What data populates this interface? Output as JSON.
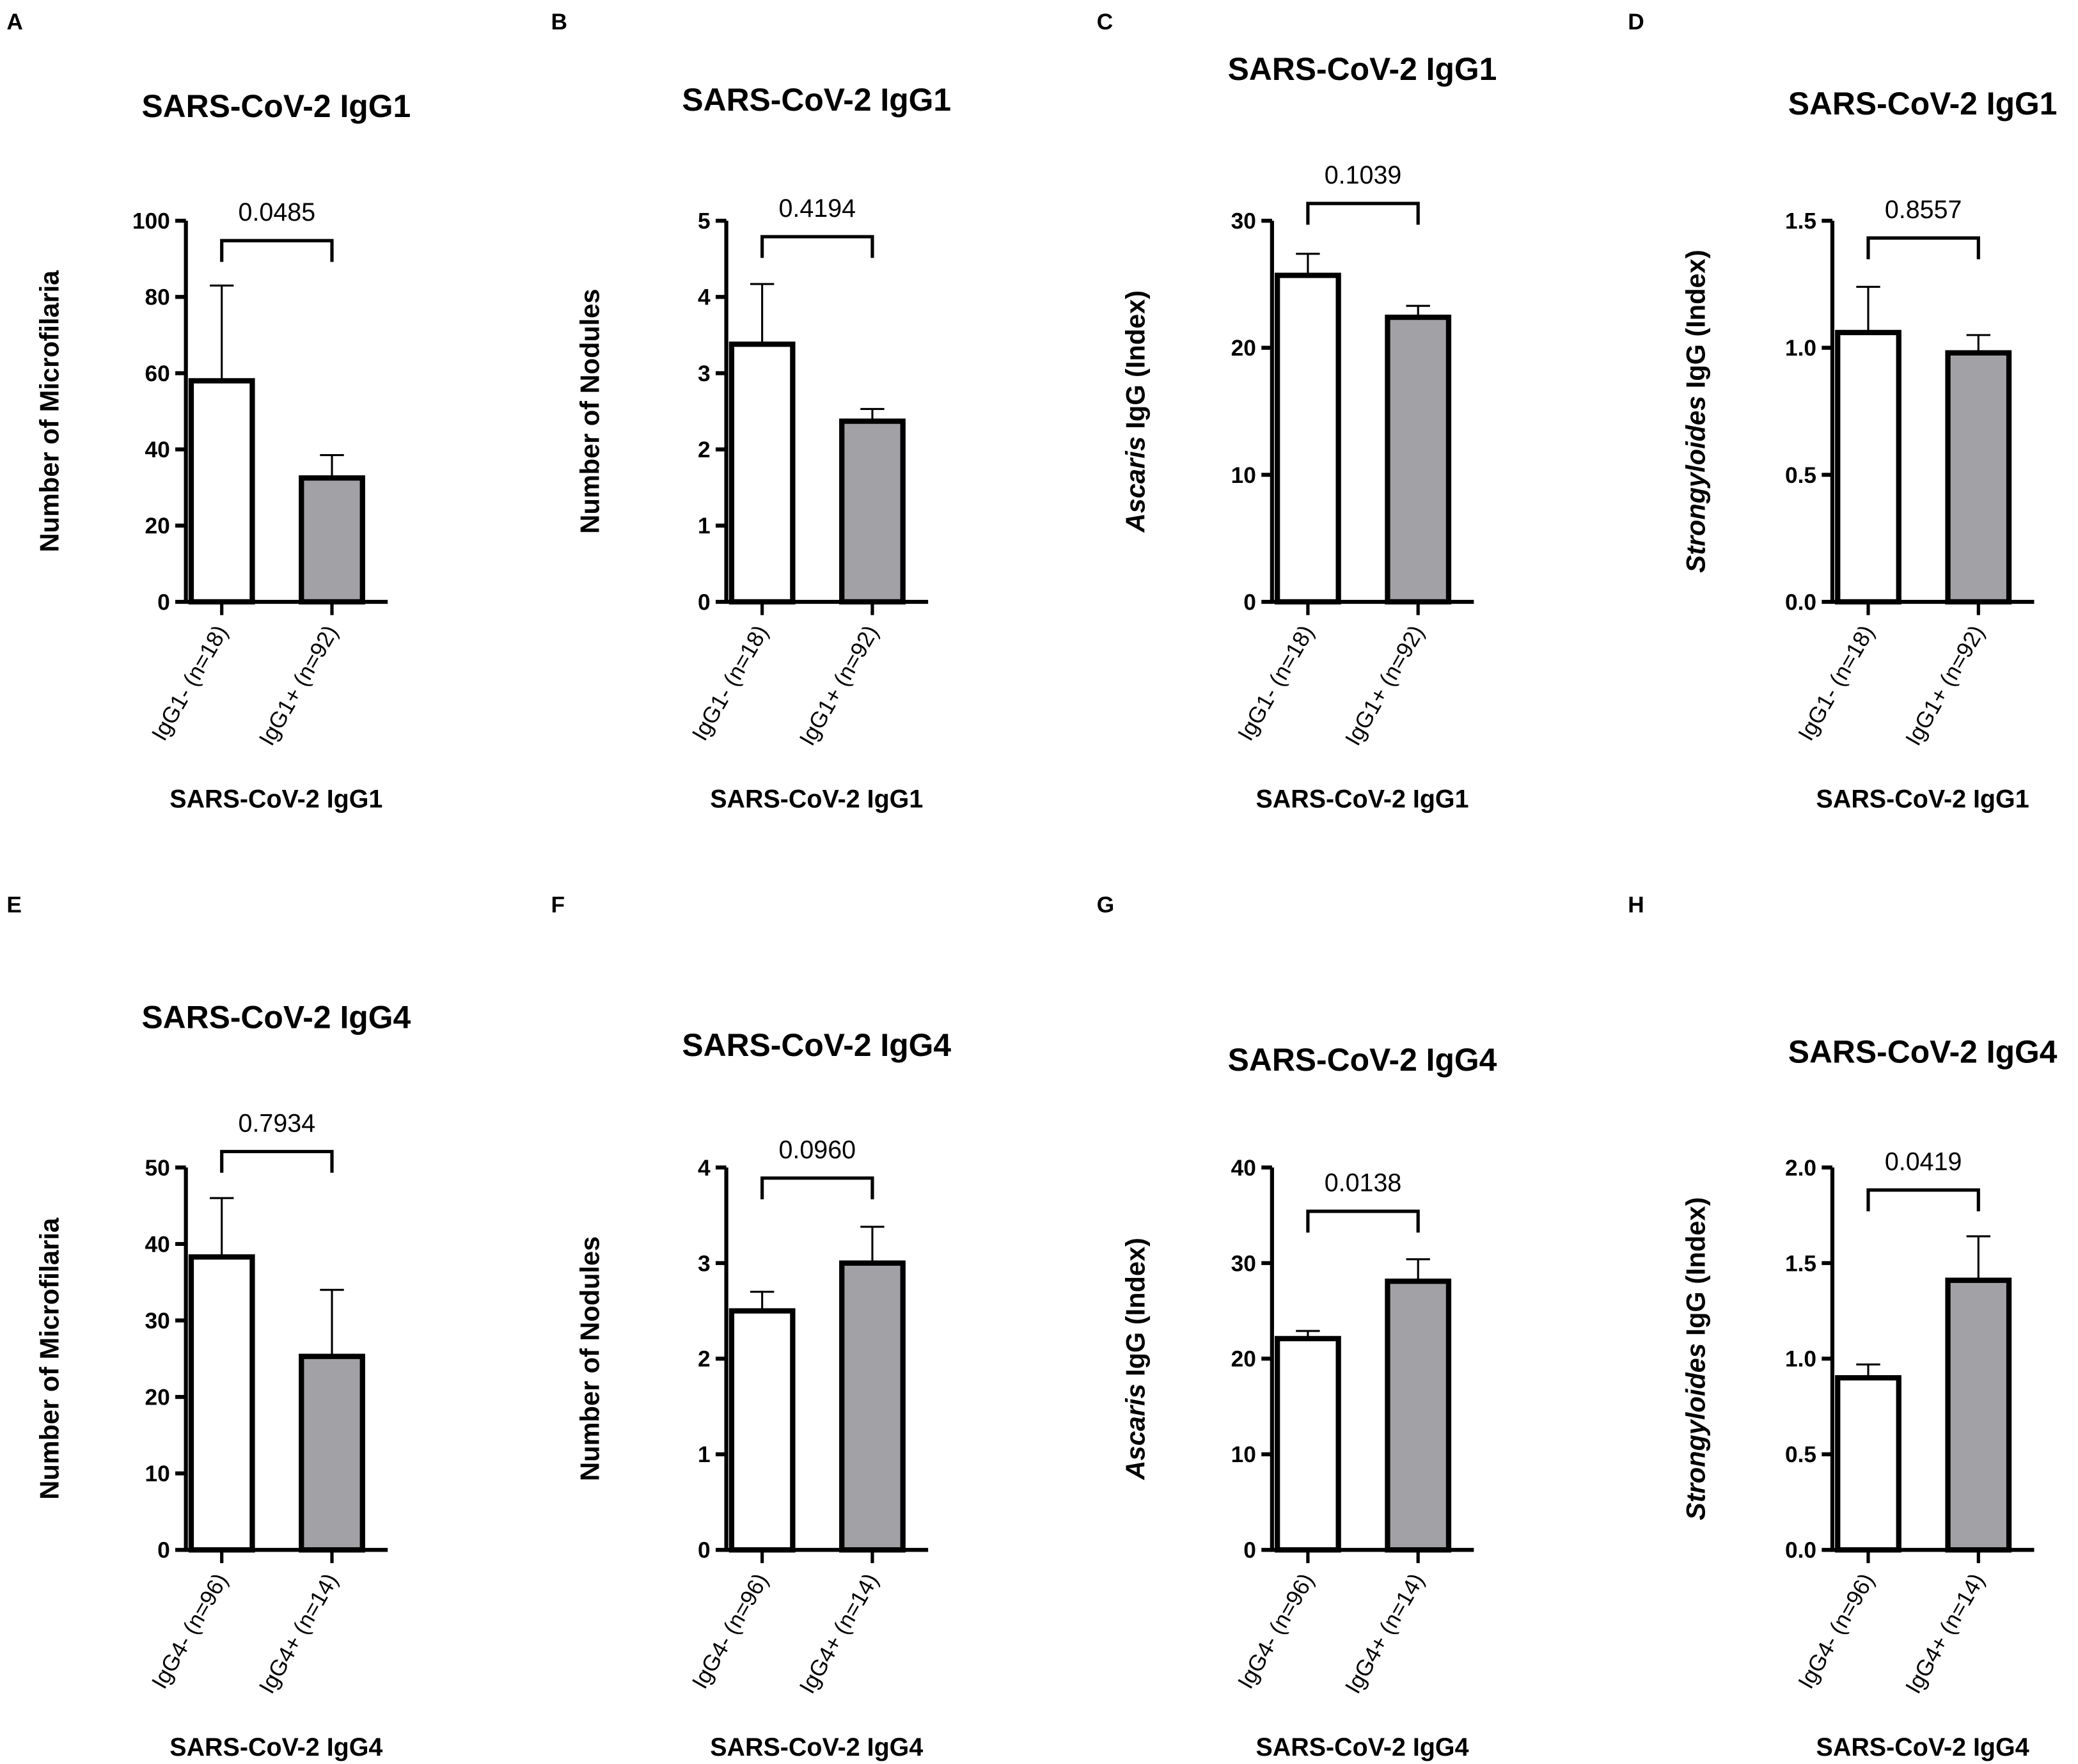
{
  "colors": {
    "bar_negative": "#ffffff",
    "bar_positive": "#a2a1a6",
    "stroke": "#000000"
  },
  "chart_data": [
    {
      "panel": "A",
      "type": "bar",
      "title": "SARS-CoV-2 IgG1",
      "ylabel": "Number of Microfilaria",
      "ylabel_italic": "",
      "xlabel": "SARS-CoV-2 IgG1",
      "categories": [
        "IgG1- (n=18)",
        "IgG1+ (n=92)"
      ],
      "values": [
        58,
        32.5
      ],
      "error_upper": [
        83,
        38.5
      ],
      "ylim": [
        0,
        100
      ],
      "yticks": [
        "0",
        "20",
        "40",
        "60",
        "80",
        "100"
      ],
      "p_value": "0.0485"
    },
    {
      "panel": "B",
      "type": "bar",
      "title": "SARS-CoV-2 IgG1",
      "ylabel": "Number of Nodules",
      "ylabel_italic": "",
      "xlabel": "SARS-CoV-2 IgG1",
      "categories": [
        "IgG1- (n=18)",
        "IgG1+ (n=92)"
      ],
      "values": [
        3.38,
        2.37
      ],
      "error_upper": [
        4.17,
        2.53
      ],
      "ylim": [
        0,
        5
      ],
      "yticks": [
        "0",
        "1",
        "2",
        "3",
        "4",
        "5"
      ],
      "p_value": "0.4194"
    },
    {
      "panel": "C",
      "type": "bar",
      "title": "SARS-CoV-2 IgG1",
      "ylabel": " IgG (Index)",
      "ylabel_italic": "Ascaris",
      "xlabel": "SARS-CoV-2 IgG1",
      "categories": [
        "IgG1- (n=18)",
        "IgG1+ (n=92)"
      ],
      "values": [
        25.7,
        22.4
      ],
      "error_upper": [
        27.4,
        23.3
      ],
      "ylim": [
        0,
        30
      ],
      "yticks": [
        "0",
        "10",
        "20",
        "30"
      ],
      "p_value": "0.1039"
    },
    {
      "panel": "D",
      "type": "bar",
      "title": "SARS-CoV-2 IgG1",
      "ylabel": " IgG (Index)",
      "ylabel_italic": "Strongyloides",
      "xlabel": "SARS-CoV-2 IgG1",
      "categories": [
        "IgG1- (n=18)",
        "IgG1+ (n=92)"
      ],
      "values": [
        1.06,
        0.98
      ],
      "error_upper": [
        1.24,
        1.05
      ],
      "ylim": [
        0,
        1.5
      ],
      "yticks": [
        "0.0",
        "0.5",
        "1.0",
        "1.5"
      ],
      "p_value": "0.8557"
    },
    {
      "panel": "E",
      "type": "bar",
      "title": "SARS-CoV-2 IgG4",
      "ylabel": "Number of Microfilaria",
      "ylabel_italic": "",
      "xlabel": "SARS-CoV-2 IgG4",
      "categories": [
        "IgG4- (n=96)",
        "IgG4+ (n=14)"
      ],
      "values": [
        38.3,
        25.3
      ],
      "error_upper": [
        46,
        34
      ],
      "ylim": [
        0,
        50
      ],
      "yticks": [
        "0",
        "10",
        "20",
        "30",
        "40",
        "50"
      ],
      "p_value": "0.7934"
    },
    {
      "panel": "F",
      "type": "bar",
      "title": "SARS-CoV-2 IgG4",
      "ylabel": "Number of Nodules",
      "ylabel_italic": "",
      "xlabel": "SARS-CoV-2 IgG4",
      "categories": [
        "IgG4- (n=96)",
        "IgG4+ (n=14)"
      ],
      "values": [
        2.5,
        3.0
      ],
      "error_upper": [
        2.7,
        3.38
      ],
      "ylim": [
        0,
        4
      ],
      "yticks": [
        "0",
        "1",
        "2",
        "3",
        "4"
      ],
      "p_value": "0.0960"
    },
    {
      "panel": "G",
      "type": "bar",
      "title": "SARS-CoV-2 IgG4",
      "ylabel": " IgG (Index)",
      "ylabel_italic": "Ascaris",
      "xlabel": "SARS-CoV-2 IgG4",
      "categories": [
        "IgG4- (n=96)",
        "IgG4+ (n=14)"
      ],
      "values": [
        22.1,
        28.1
      ],
      "error_upper": [
        22.9,
        30.4
      ],
      "ylim": [
        0,
        40
      ],
      "yticks": [
        "0",
        "10",
        "20",
        "30",
        "40"
      ],
      "p_value": "0.0138"
    },
    {
      "panel": "H",
      "type": "bar",
      "title": "SARS-CoV-2 IgG4",
      "ylabel": " IgG (Index)",
      "ylabel_italic": "Strongyloides",
      "xlabel": "SARS-CoV-2 IgG4",
      "categories": [
        "IgG4- (n=96)",
        "IgG4+ (n=14)"
      ],
      "values": [
        0.9,
        1.41
      ],
      "error_upper": [
        0.97,
        1.64
      ],
      "ylim": [
        0,
        2.0
      ],
      "yticks": [
        "0.0",
        "0.5",
        "1.0",
        "1.5",
        "2.0"
      ],
      "p_value": "0.0419"
    }
  ]
}
